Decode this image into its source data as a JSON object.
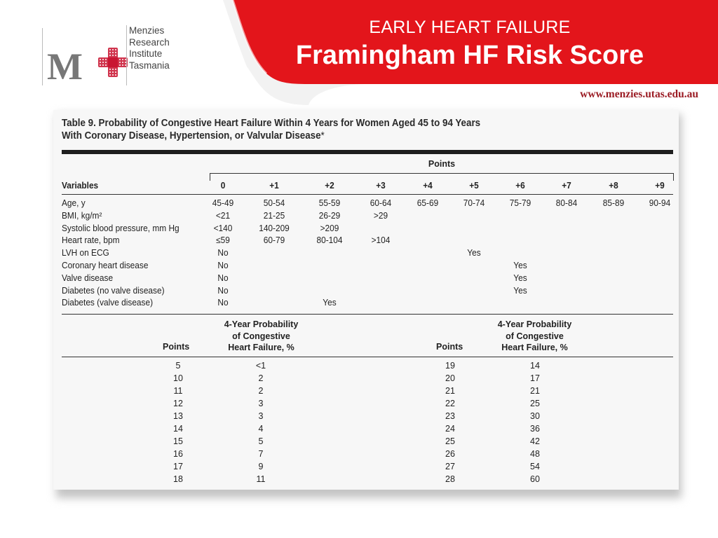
{
  "header": {
    "subtitle": "EARLY HEART FAILURE",
    "title": "Framingham HF Risk Score",
    "url": "www.menzies.utas.edu.au",
    "accent_color": "#e3151b"
  },
  "logo": {
    "letter": "M",
    "lines": [
      "Menzies",
      "Research",
      "Institute",
      "Tasmania"
    ]
  },
  "table": {
    "caption_line1": "Table 9. Probability of Congestive Heart Failure Within 4 Years for Women Aged 45 to 94 Years",
    "caption_line2": "With Coronary Disease, Hypertension, or Valvular Disease",
    "caption_asterisk": "*",
    "points_header": "Points",
    "variables_header": "Variables",
    "columns": [
      "0",
      "+1",
      "+2",
      "+3",
      "+4",
      "+5",
      "+6",
      "+7",
      "+8",
      "+9"
    ],
    "rows": [
      {
        "label": "Age, y",
        "cells": [
          "45-49",
          "50-54",
          "55-59",
          "60-64",
          "65-69",
          "70-74",
          "75-79",
          "80-84",
          "85-89",
          "90-94"
        ]
      },
      {
        "label": "BMI, kg/m²",
        "cells": [
          "<21",
          "21-25",
          "26-29",
          ">29",
          "",
          "",
          "",
          "",
          "",
          ""
        ]
      },
      {
        "label": "Systolic blood pressure, mm Hg",
        "cells": [
          "<140",
          "140-209",
          ">209",
          "",
          "",
          "",
          "",
          "",
          "",
          ""
        ]
      },
      {
        "label": "Heart rate, bpm",
        "cells": [
          "≤59",
          "60-79",
          "80-104",
          ">104",
          "",
          "",
          "",
          "",
          "",
          ""
        ]
      },
      {
        "label": "LVH on ECG",
        "cells": [
          "No",
          "",
          "",
          "",
          "",
          "Yes",
          "",
          "",
          "",
          ""
        ]
      },
      {
        "label": "Coronary heart disease",
        "cells": [
          "No",
          "",
          "",
          "",
          "",
          "",
          "Yes",
          "",
          "",
          ""
        ]
      },
      {
        "label": "Valve disease",
        "cells": [
          "No",
          "",
          "",
          "",
          "",
          "",
          "Yes",
          "",
          "",
          ""
        ]
      },
      {
        "label": "Diabetes (no valve disease)",
        "cells": [
          "No",
          "",
          "",
          "",
          "",
          "",
          "Yes",
          "",
          "",
          ""
        ]
      },
      {
        "label": "Diabetes (valve disease)",
        "cells": [
          "No",
          "",
          "Yes",
          "",
          "",
          "",
          "",
          "",
          "",
          ""
        ]
      }
    ],
    "prob_points_label": "Points",
    "prob_header_lines": [
      "4-Year Probability",
      "of Congestive",
      "Heart Failure, %"
    ],
    "prob_left": {
      "points": [
        "5",
        "10",
        "11",
        "12",
        "13",
        "14",
        "15",
        "16",
        "17",
        "18"
      ],
      "probability": [
        "<1",
        "2",
        "2",
        "3",
        "3",
        "4",
        "5",
        "7",
        "9",
        "11"
      ]
    },
    "prob_right": {
      "points": [
        "19",
        "20",
        "21",
        "22",
        "23",
        "24",
        "25",
        "26",
        "27",
        "28"
      ],
      "probability": [
        "14",
        "17",
        "21",
        "25",
        "30",
        "36",
        "42",
        "48",
        "54",
        "60"
      ]
    }
  }
}
